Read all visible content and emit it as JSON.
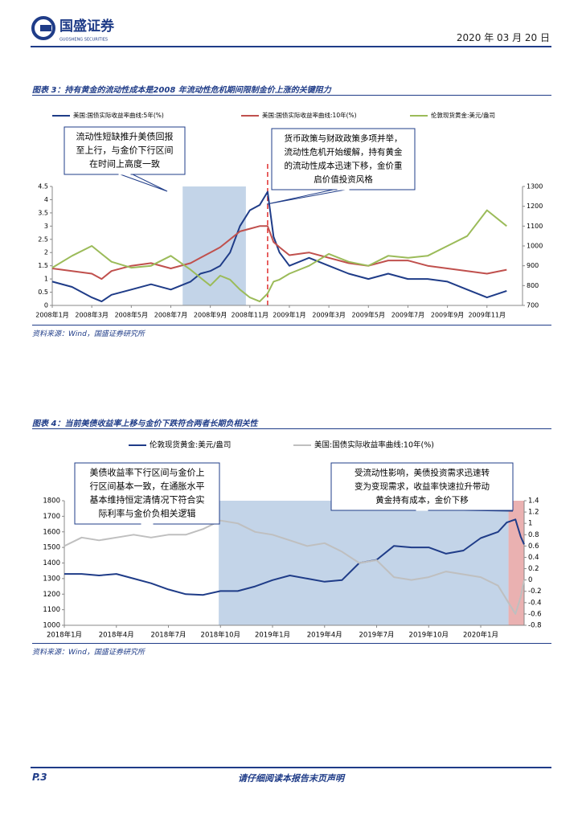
{
  "header": {
    "logo": "国盛证券",
    "logo_en": "GUOSHENG SECURITIES",
    "date": "2020 年 03 月 20 日"
  },
  "chart_data": [
    {
      "type": "line",
      "title": "图表 3：持有黄金的流动性成本是2008 年流动性危机期间限制金价上涨的关键阻力",
      "source": "资料来源：Wind，国盛证券研究所",
      "x": [
        0,
        1,
        2,
        2.5,
        3,
        4,
        5,
        6,
        7,
        7.5,
        8,
        8.5,
        9,
        9.5,
        10,
        10.5,
        10.9,
        11.2,
        11.5,
        12,
        13,
        14,
        15,
        16,
        17,
        18,
        19,
        20,
        21,
        22,
        23
      ],
      "xlim": [
        0,
        23.8
      ],
      "xticks": [
        {
          "value": 0,
          "label": "2008年1月"
        },
        {
          "value": 2,
          "label": "2008年3月"
        },
        {
          "value": 4,
          "label": "2008年5月"
        },
        {
          "value": 6,
          "label": "2008年7月"
        },
        {
          "value": 8,
          "label": "2008年9月"
        },
        {
          "value": 10,
          "label": "2008年11月"
        },
        {
          "value": 12,
          "label": "2009年1月"
        },
        {
          "value": 14,
          "label": "2009年3月"
        },
        {
          "value": 16,
          "label": "2009年5月"
        },
        {
          "value": 18,
          "label": "2009年7月"
        },
        {
          "value": 20,
          "label": "2009年9月"
        },
        {
          "value": 22,
          "label": "2009年11月"
        }
      ],
      "ylim": [
        0,
        4.5
      ],
      "yticks": [
        0,
        0.5,
        1,
        1.5,
        2,
        2.5,
        3,
        3.5,
        4,
        4.5
      ],
      "y2lim": [
        700,
        1300
      ],
      "y2ticks": [
        700,
        800,
        900,
        1000,
        1100,
        1200,
        1300
      ],
      "legend": "top",
      "shaded_ranges": [
        {
          "from": 6.6,
          "to": 9.8,
          "color": "#b8cce4"
        }
      ],
      "vlines": [
        {
          "x": 10.9,
          "color": "#e03030"
        }
      ],
      "series": [
        {
          "name": "美国:国债实际收益率曲线:5年(%)",
          "color": "#1f3c88",
          "values": [
            0.9,
            0.7,
            0.3,
            0.15,
            0.4,
            0.6,
            0.8,
            0.6,
            0.9,
            1.2,
            1.3,
            1.5,
            2.0,
            3.0,
            3.6,
            3.8,
            4.3,
            2.6,
            2.0,
            1.5,
            1.8,
            1.5,
            1.2,
            1.0,
            1.2,
            1.0,
            1.0,
            0.9,
            0.6,
            0.3,
            0.55
          ]
        },
        {
          "name": "美国:国债实际收益率曲线:10年(%)",
          "color": "#c0504d",
          "values": [
            1.4,
            1.3,
            1.2,
            1.0,
            1.3,
            1.5,
            1.6,
            1.4,
            1.6,
            1.8,
            2.0,
            2.2,
            2.5,
            2.8,
            2.9,
            3.0,
            3.0,
            2.4,
            2.2,
            1.9,
            2.0,
            1.8,
            1.6,
            1.5,
            1.7,
            1.7,
            1.5,
            1.4,
            1.3,
            1.2,
            1.35
          ]
        },
        {
          "name": "伦敦现货黄金:美元/盎司",
          "color": "#9bbb59",
          "axis": "y2",
          "values": [
            890,
            950,
            1000,
            960,
            920,
            890,
            900,
            950,
            880,
            840,
            800,
            850,
            830,
            780,
            740,
            720,
            760,
            820,
            830,
            860,
            900,
            960,
            920,
            900,
            950,
            940,
            950,
            1000,
            1050,
            1180,
            1100
          ]
        }
      ],
      "annotations": [
        {
          "lines": [
            "流动性短缺推升美债回报",
            "至上行，与金价下行区间",
            "在时间上高度一致"
          ]
        },
        {
          "lines": [
            "货币政策与财政政策多项并举，",
            "流动性危机开始缓解，持有黄金",
            "的流动性成本迅速下移，金价重",
            "启价值投资风格"
          ]
        }
      ]
    },
    {
      "type": "line",
      "title": "图表 4：当前美债收益率上移与金价下跌符合两者长期负相关性",
      "source": "资料来源：Wind，国盛证券研究所",
      "x": [
        0,
        1,
        2,
        3,
        4,
        5,
        6,
        7,
        8,
        9,
        10,
        11,
        12,
        13,
        14,
        15,
        16,
        17,
        18,
        19,
        20,
        21,
        22,
        23,
        24,
        25,
        25.5,
        26,
        26.3,
        26.5
      ],
      "xlim": [
        0,
        26.5
      ],
      "xticks": [
        {
          "value": 0,
          "label": "2018年1月"
        },
        {
          "value": 3,
          "label": "2018年4月"
        },
        {
          "value": 6,
          "label": "2018年7月"
        },
        {
          "value": 9,
          "label": "2018年10月"
        },
        {
          "value": 12,
          "label": "2019年1月"
        },
        {
          "value": 15,
          "label": "2019年4月"
        },
        {
          "value": 18,
          "label": "2019年7月"
        },
        {
          "value": 21,
          "label": "2019年10月"
        },
        {
          "value": 24,
          "label": "2020年1月"
        }
      ],
      "ylim": [
        1000,
        1800
      ],
      "yticks": [
        1000,
        1100,
        1200,
        1300,
        1400,
        1500,
        1600,
        1700,
        1800
      ],
      "y2lim": [
        -0.8,
        1.4
      ],
      "y2ticks": [
        -0.8,
        -0.6,
        -0.4,
        -0.2,
        0,
        0.2,
        0.4,
        0.6,
        0.8,
        1,
        1.2,
        1.4
      ],
      "legend": "top",
      "shaded_ranges": [
        {
          "from": 8.9,
          "to": 25.6,
          "color": "#b8cce4"
        },
        {
          "from": 25.6,
          "to": 26.5,
          "color": "#e6a3a3"
        }
      ],
      "vlines": [],
      "series": [
        {
          "name": "伦敦现货黄金:美元/盎司",
          "color": "#1f3c88",
          "values": [
            1330,
            1330,
            1320,
            1330,
            1300,
            1270,
            1230,
            1200,
            1195,
            1220,
            1220,
            1250,
            1290,
            1320,
            1300,
            1280,
            1290,
            1400,
            1420,
            1510,
            1500,
            1500,
            1460,
            1480,
            1560,
            1600,
            1660,
            1680,
            1570,
            1520
          ]
        },
        {
          "name": "美国:国债实际收益率曲线:10年(%)",
          "color": "#bfbfbf",
          "axis": "y2",
          "values": [
            0.6,
            0.75,
            0.7,
            0.75,
            0.8,
            0.75,
            0.8,
            0.8,
            0.9,
            1.05,
            1.0,
            0.85,
            0.8,
            0.7,
            0.6,
            0.65,
            0.5,
            0.3,
            0.35,
            0.05,
            0.0,
            0.05,
            0.15,
            0.1,
            0.05,
            -0.1,
            -0.35,
            -0.6,
            -0.3,
            0.0
          ]
        }
      ],
      "annotations": [
        {
          "lines": [
            "美债收益率下行区间与金价上",
            "行区间基本一致，在通胀水平",
            "基本维持恒定清情况下符合实",
            "际利率与金价负相关逻辑"
          ]
        },
        {
          "lines": [
            "受流动性影响，美债投资需求迅速转",
            "变为变现需求，收益率快速拉升带动",
            "黄金持有成本，金价下移"
          ]
        }
      ]
    }
  ],
  "footer": {
    "page": "P.3",
    "note": "请仔细阅读本报告末页声明"
  }
}
